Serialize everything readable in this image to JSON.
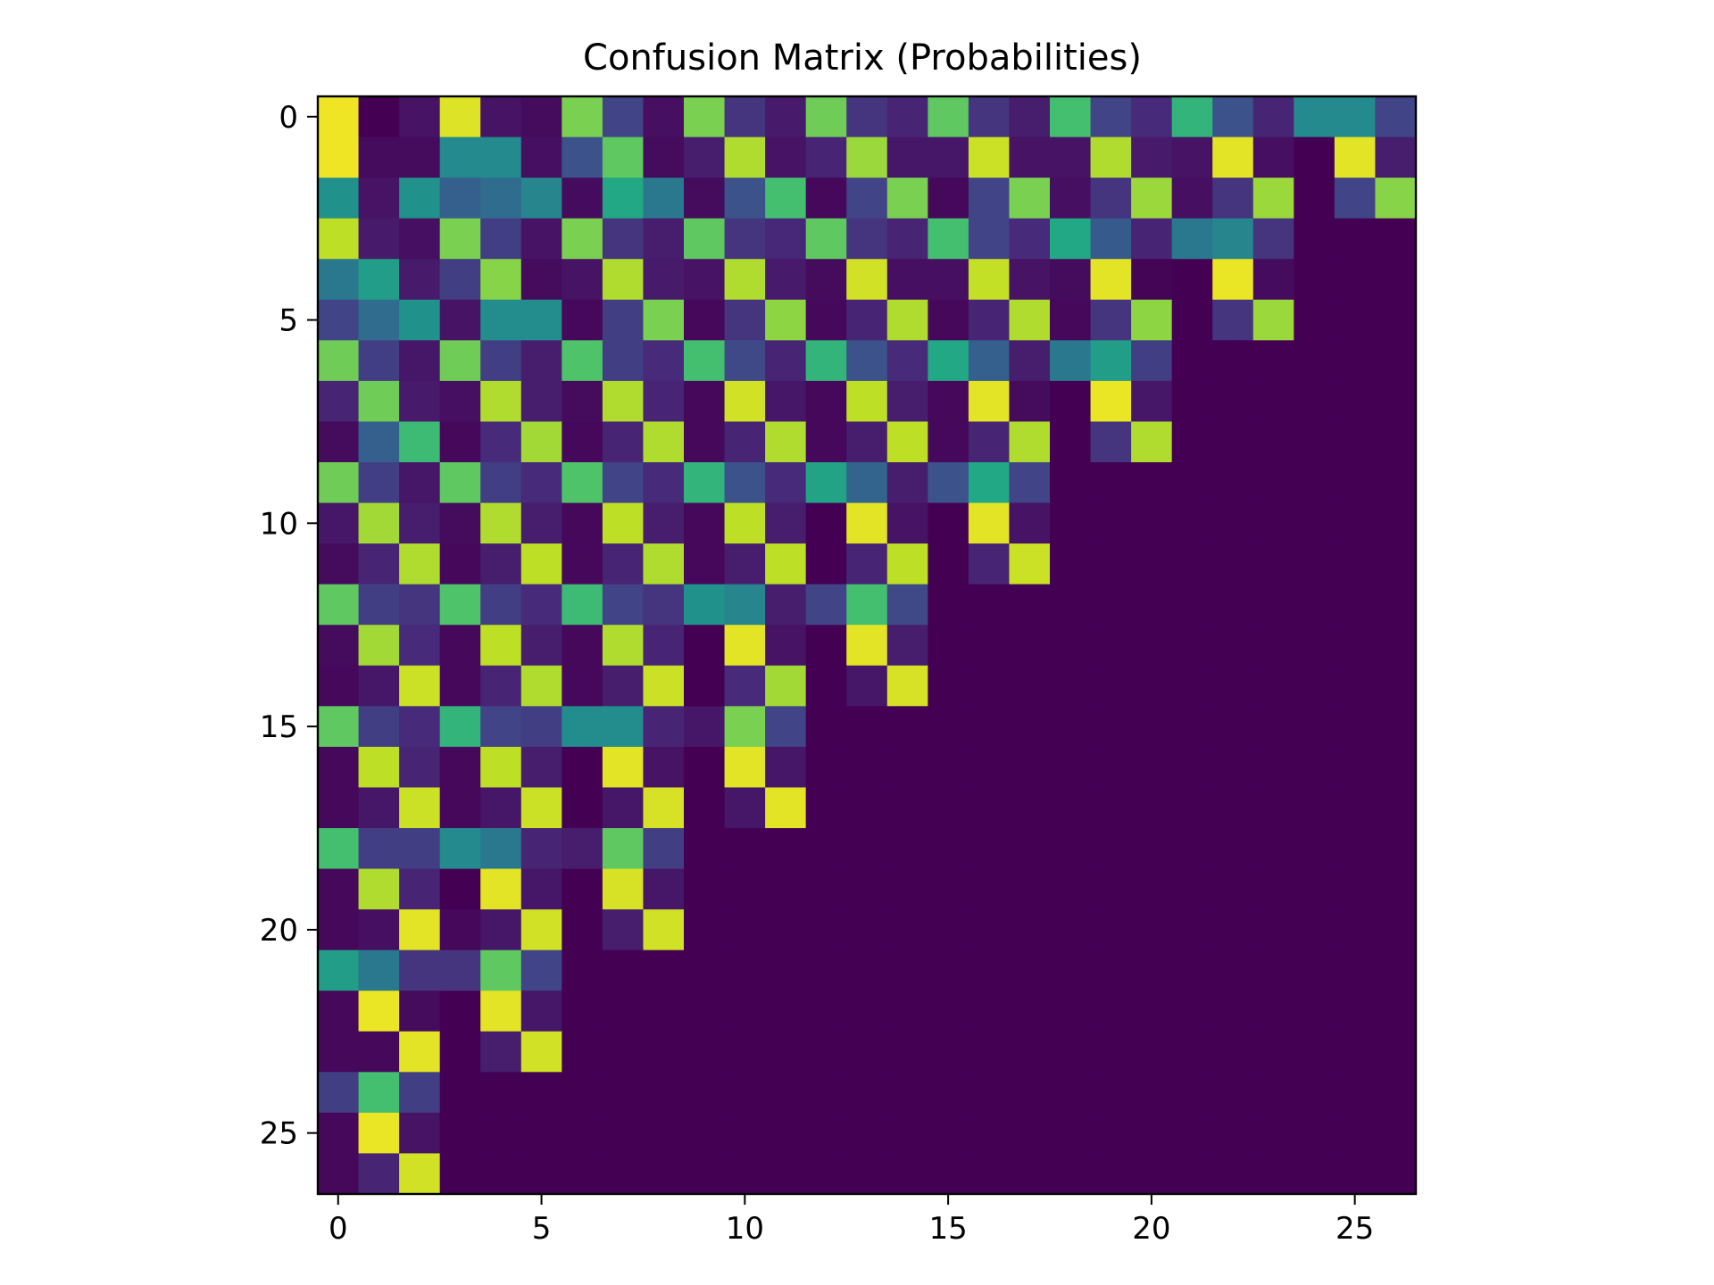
{
  "chart_data": {
    "type": "heatmap",
    "title": "Confusion Matrix (Probabilities)",
    "xlabel": "",
    "ylabel": "",
    "colormap": "viridis",
    "vmin": 0,
    "vmax": 1,
    "xlim": [
      -0.5,
      26.5
    ],
    "ylim": [
      26.5,
      -0.5
    ],
    "x_ticks": [
      0,
      5,
      10,
      15,
      20,
      25
    ],
    "y_ticks": [
      0,
      5,
      10,
      15,
      20,
      25
    ],
    "x_tick_labels": [
      "0",
      "5",
      "10",
      "15",
      "20",
      "25"
    ],
    "y_tick_labels": [
      "0",
      "5",
      "10",
      "15",
      "20",
      "25"
    ],
    "grid": false,
    "matrix": [
      [
        0.98,
        0.0,
        0.05,
        0.95,
        0.05,
        0.03,
        0.8,
        0.2,
        0.04,
        0.8,
        0.15,
        0.07,
        0.78,
        0.15,
        0.1,
        0.75,
        0.15,
        0.08,
        0.7,
        0.2,
        0.12,
        0.65,
        0.25,
        0.1,
        0.47,
        0.47,
        0.2
      ],
      [
        0.98,
        0.03,
        0.03,
        0.47,
        0.47,
        0.04,
        0.25,
        0.75,
        0.03,
        0.08,
        0.88,
        0.05,
        0.1,
        0.85,
        0.06,
        0.06,
        0.92,
        0.05,
        0.05,
        0.88,
        0.07,
        0.05,
        0.96,
        0.04,
        0.0,
        0.96,
        0.08
      ],
      [
        0.5,
        0.05,
        0.5,
        0.3,
        0.35,
        0.45,
        0.03,
        0.6,
        0.4,
        0.03,
        0.25,
        0.7,
        0.02,
        0.2,
        0.8,
        0.02,
        0.2,
        0.8,
        0.04,
        0.15,
        0.85,
        0.04,
        0.15,
        0.85,
        0.0,
        0.2,
        0.82
      ],
      [
        0.9,
        0.07,
        0.04,
        0.8,
        0.18,
        0.05,
        0.8,
        0.15,
        0.08,
        0.75,
        0.15,
        0.11,
        0.75,
        0.15,
        0.1,
        0.7,
        0.2,
        0.12,
        0.6,
        0.28,
        0.1,
        0.4,
        0.45,
        0.15,
        0.0,
        0.0,
        0.0
      ],
      [
        0.4,
        0.55,
        0.07,
        0.18,
        0.82,
        0.03,
        0.05,
        0.88,
        0.07,
        0.05,
        0.88,
        0.07,
        0.03,
        0.93,
        0.04,
        0.04,
        0.91,
        0.05,
        0.03,
        0.96,
        0.01,
        0.0,
        0.97,
        0.03,
        0.0,
        0.0,
        0.0
      ],
      [
        0.2,
        0.35,
        0.5,
        0.05,
        0.48,
        0.48,
        0.02,
        0.18,
        0.8,
        0.02,
        0.15,
        0.83,
        0.02,
        0.1,
        0.88,
        0.02,
        0.1,
        0.88,
        0.02,
        0.15,
        0.83,
        0.0,
        0.15,
        0.85,
        0.0,
        0.0,
        0.0
      ],
      [
        0.78,
        0.18,
        0.06,
        0.78,
        0.18,
        0.08,
        0.72,
        0.18,
        0.12,
        0.7,
        0.22,
        0.1,
        0.65,
        0.25,
        0.12,
        0.6,
        0.3,
        0.08,
        0.4,
        0.55,
        0.18,
        0.0,
        0.0,
        0.0,
        0.0,
        0.0,
        0.0
      ],
      [
        0.1,
        0.78,
        0.07,
        0.04,
        0.88,
        0.08,
        0.03,
        0.88,
        0.1,
        0.02,
        0.93,
        0.06,
        0.02,
        0.9,
        0.08,
        0.02,
        0.96,
        0.03,
        0.0,
        0.97,
        0.06,
        0.0,
        0.0,
        0.0,
        0.0,
        0.0,
        0.0
      ],
      [
        0.03,
        0.3,
        0.68,
        0.02,
        0.12,
        0.86,
        0.02,
        0.1,
        0.88,
        0.02,
        0.1,
        0.88,
        0.02,
        0.08,
        0.9,
        0.02,
        0.1,
        0.88,
        0.0,
        0.15,
        0.88,
        0.0,
        0.0,
        0.0,
        0.0,
        0.0,
        0.0
      ],
      [
        0.78,
        0.18,
        0.06,
        0.75,
        0.18,
        0.12,
        0.72,
        0.2,
        0.12,
        0.65,
        0.25,
        0.12,
        0.58,
        0.32,
        0.08,
        0.25,
        0.6,
        0.2,
        0.0,
        0.0,
        0.0,
        0.0,
        0.0,
        0.0,
        0.0,
        0.0,
        0.0
      ],
      [
        0.06,
        0.86,
        0.08,
        0.03,
        0.88,
        0.08,
        0.02,
        0.9,
        0.08,
        0.02,
        0.9,
        0.08,
        0.0,
        0.96,
        0.05,
        0.0,
        0.96,
        0.05,
        0.0,
        0.0,
        0.0,
        0.0,
        0.0,
        0.0,
        0.0,
        0.0,
        0.0
      ],
      [
        0.03,
        0.1,
        0.88,
        0.02,
        0.08,
        0.9,
        0.02,
        0.1,
        0.88,
        0.02,
        0.08,
        0.9,
        0.0,
        0.1,
        0.9,
        0.0,
        0.1,
        0.92,
        0.0,
        0.0,
        0.0,
        0.0,
        0.0,
        0.0,
        0.0,
        0.0,
        0.0
      ],
      [
        0.75,
        0.18,
        0.15,
        0.72,
        0.18,
        0.12,
        0.68,
        0.2,
        0.15,
        0.5,
        0.45,
        0.08,
        0.2,
        0.7,
        0.22,
        0.0,
        0.0,
        0.0,
        0.0,
        0.0,
        0.0,
        0.0,
        0.0,
        0.0,
        0.0,
        0.0,
        0.0
      ],
      [
        0.03,
        0.86,
        0.12,
        0.02,
        0.9,
        0.08,
        0.02,
        0.88,
        0.1,
        0.0,
        0.96,
        0.05,
        0.0,
        0.96,
        0.08,
        0.0,
        0.0,
        0.0,
        0.0,
        0.0,
        0.0,
        0.0,
        0.0,
        0.0,
        0.0,
        0.0,
        0.0
      ],
      [
        0.02,
        0.06,
        0.92,
        0.02,
        0.1,
        0.88,
        0.02,
        0.08,
        0.92,
        0.0,
        0.12,
        0.86,
        0.0,
        0.06,
        0.94,
        0.0,
        0.0,
        0.0,
        0.0,
        0.0,
        0.0,
        0.0,
        0.0,
        0.0,
        0.0,
        0.0,
        0.0
      ],
      [
        0.75,
        0.18,
        0.12,
        0.65,
        0.2,
        0.18,
        0.48,
        0.48,
        0.1,
        0.06,
        0.8,
        0.2,
        0.0,
        0.0,
        0.0,
        0.0,
        0.0,
        0.0,
        0.0,
        0.0,
        0.0,
        0.0,
        0.0,
        0.0,
        0.0,
        0.0,
        0.0
      ],
      [
        0.02,
        0.9,
        0.1,
        0.02,
        0.9,
        0.08,
        0.0,
        0.96,
        0.05,
        0.0,
        0.96,
        0.06,
        0.0,
        0.0,
        0.0,
        0.0,
        0.0,
        0.0,
        0.0,
        0.0,
        0.0,
        0.0,
        0.0,
        0.0,
        0.0,
        0.0,
        0.0
      ],
      [
        0.02,
        0.06,
        0.92,
        0.02,
        0.06,
        0.92,
        0.0,
        0.06,
        0.94,
        0.0,
        0.06,
        0.96,
        0.0,
        0.0,
        0.0,
        0.0,
        0.0,
        0.0,
        0.0,
        0.0,
        0.0,
        0.0,
        0.0,
        0.0,
        0.0,
        0.0,
        0.0
      ],
      [
        0.7,
        0.18,
        0.18,
        0.47,
        0.4,
        0.1,
        0.08,
        0.75,
        0.18,
        0.0,
        0.0,
        0.0,
        0.0,
        0.0,
        0.0,
        0.0,
        0.0,
        0.0,
        0.0,
        0.0,
        0.0,
        0.0,
        0.0,
        0.0,
        0.0,
        0.0,
        0.0
      ],
      [
        0.02,
        0.88,
        0.1,
        0.0,
        0.96,
        0.06,
        0.0,
        0.94,
        0.06,
        0.0,
        0.0,
        0.0,
        0.0,
        0.0,
        0.0,
        0.0,
        0.0,
        0.0,
        0.0,
        0.0,
        0.0,
        0.0,
        0.0,
        0.0,
        0.0,
        0.0,
        0.0
      ],
      [
        0.02,
        0.04,
        0.96,
        0.02,
        0.06,
        0.93,
        0.0,
        0.08,
        0.93,
        0.0,
        0.0,
        0.0,
        0.0,
        0.0,
        0.0,
        0.0,
        0.0,
        0.0,
        0.0,
        0.0,
        0.0,
        0.0,
        0.0,
        0.0,
        0.0,
        0.0,
        0.0
      ],
      [
        0.55,
        0.4,
        0.15,
        0.15,
        0.75,
        0.2,
        0.0,
        0.0,
        0.0,
        0.0,
        0.0,
        0.0,
        0.0,
        0.0,
        0.0,
        0.0,
        0.0,
        0.0,
        0.0,
        0.0,
        0.0,
        0.0,
        0.0,
        0.0,
        0.0,
        0.0,
        0.0
      ],
      [
        0.02,
        0.97,
        0.03,
        0.0,
        0.96,
        0.06,
        0.0,
        0.0,
        0.0,
        0.0,
        0.0,
        0.0,
        0.0,
        0.0,
        0.0,
        0.0,
        0.0,
        0.0,
        0.0,
        0.0,
        0.0,
        0.0,
        0.0,
        0.0,
        0.0,
        0.0,
        0.0
      ],
      [
        0.02,
        0.02,
        0.96,
        0.0,
        0.08,
        0.93,
        0.0,
        0.0,
        0.0,
        0.0,
        0.0,
        0.0,
        0.0,
        0.0,
        0.0,
        0.0,
        0.0,
        0.0,
        0.0,
        0.0,
        0.0,
        0.0,
        0.0,
        0.0,
        0.0,
        0.0,
        0.0
      ],
      [
        0.18,
        0.7,
        0.18,
        0.0,
        0.0,
        0.0,
        0.0,
        0.0,
        0.0,
        0.0,
        0.0,
        0.0,
        0.0,
        0.0,
        0.0,
        0.0,
        0.0,
        0.0,
        0.0,
        0.0,
        0.0,
        0.0,
        0.0,
        0.0,
        0.0,
        0.0,
        0.0
      ],
      [
        0.02,
        0.97,
        0.05,
        0.0,
        0.0,
        0.0,
        0.0,
        0.0,
        0.0,
        0.0,
        0.0,
        0.0,
        0.0,
        0.0,
        0.0,
        0.0,
        0.0,
        0.0,
        0.0,
        0.0,
        0.0,
        0.0,
        0.0,
        0.0,
        0.0,
        0.0,
        0.0
      ],
      [
        0.02,
        0.1,
        0.93,
        0.0,
        0.0,
        0.0,
        0.0,
        0.0,
        0.0,
        0.0,
        0.0,
        0.0,
        0.0,
        0.0,
        0.0,
        0.0,
        0.0,
        0.0,
        0.0,
        0.0,
        0.0,
        0.0,
        0.0,
        0.0,
        0.0,
        0.0,
        0.0
      ]
    ]
  }
}
